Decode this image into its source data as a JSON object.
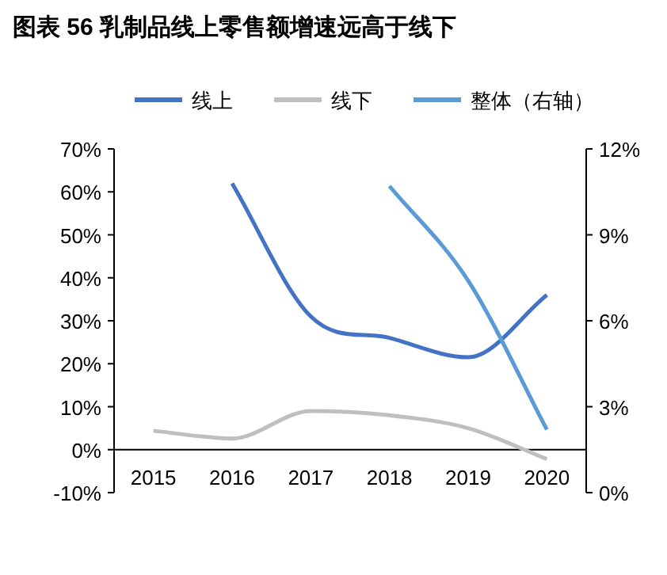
{
  "chart_data": {
    "type": "line",
    "title": "图表 56  乳制品线上零售额增速远高于线下",
    "categories": [
      "2015",
      "2016",
      "2017",
      "2018",
      "2019",
      "2020"
    ],
    "series": [
      {
        "name": "线上",
        "color": "#4472c4",
        "values": [
          null,
          62,
          31,
          26,
          21.5,
          36
        ]
      },
      {
        "name": "线下",
        "color": "#bfbfbf",
        "values": [
          4.4,
          2.6,
          9,
          8,
          5,
          -2.2
        ]
      },
      {
        "name": "整体（右轴）",
        "color": "#5b9bd5",
        "axis": "y2",
        "values": [
          null,
          null,
          null,
          10.7,
          7.4,
          2.2
        ]
      }
    ],
    "ylim": [
      -10,
      70
    ],
    "yticks": [
      {
        "value": -10,
        "label": "-10%"
      },
      {
        "value": 0,
        "label": "0%"
      },
      {
        "value": 10,
        "label": "10%"
      },
      {
        "value": 20,
        "label": "20%"
      },
      {
        "value": 30,
        "label": "30%"
      },
      {
        "value": 40,
        "label": "40%"
      },
      {
        "value": 50,
        "label": "50%"
      },
      {
        "value": 60,
        "label": "60%"
      },
      {
        "value": 70,
        "label": "70%"
      }
    ],
    "y2lim": [
      0,
      12
    ],
    "y2ticks": [
      {
        "value": 0,
        "label": "0%"
      },
      {
        "value": 3,
        "label": "3%"
      },
      {
        "value": 6,
        "label": "6%"
      },
      {
        "value": 9,
        "label": "9%"
      },
      {
        "value": 12,
        "label": "12%"
      }
    ],
    "legend": "top",
    "grid": false,
    "marker": "none",
    "line_style": "solid"
  }
}
